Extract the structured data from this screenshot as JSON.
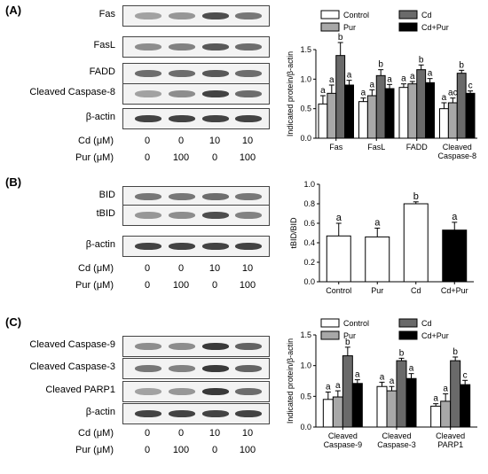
{
  "panels": [
    {
      "letter": "(A)",
      "blots": [
        {
          "label": "Fas",
          "intensity": [
            0.35,
            0.4,
            0.75,
            0.55
          ]
        },
        {
          "label": "FasL",
          "intensity": [
            0.45,
            0.5,
            0.7,
            0.6
          ]
        },
        {
          "label": "FADD",
          "intensity": [
            0.6,
            0.6,
            0.7,
            0.6
          ]
        },
        {
          "label": "Cleaved Caspase-8",
          "intensity": [
            0.35,
            0.45,
            0.8,
            0.6
          ]
        },
        {
          "label": "β-actin",
          "intensity": [
            0.8,
            0.8,
            0.8,
            0.8
          ]
        }
      ],
      "conditions": [
        {
          "label": "Cd (μM)",
          "values": [
            "0",
            "0",
            "10",
            "10"
          ]
        },
        {
          "label": "Pur (μM)",
          "values": [
            "0",
            "100",
            "0",
            "100"
          ]
        }
      ]
    },
    {
      "letter": "(B)",
      "blots": [
        {
          "label": "BID",
          "intensity": [
            0.55,
            0.55,
            0.6,
            0.55
          ]
        },
        {
          "label": "tBID",
          "intensity": [
            0.4,
            0.45,
            0.75,
            0.5
          ]
        },
        {
          "label": "β-actin",
          "intensity": [
            0.8,
            0.8,
            0.8,
            0.8
          ]
        }
      ],
      "conditions": [
        {
          "label": "Cd (μM)",
          "values": [
            "0",
            "0",
            "10",
            "10"
          ]
        },
        {
          "label": "Pur (μM)",
          "values": [
            "0",
            "100",
            "0",
            "100"
          ]
        }
      ]
    },
    {
      "letter": "(C)",
      "blots": [
        {
          "label": "Cleaved Caspase-9",
          "intensity": [
            0.45,
            0.45,
            0.85,
            0.65
          ]
        },
        {
          "label": "Cleaved Caspase-3",
          "intensity": [
            0.55,
            0.5,
            0.85,
            0.65
          ]
        },
        {
          "label": "Cleaved PARP1",
          "intensity": [
            0.35,
            0.4,
            0.85,
            0.6
          ]
        },
        {
          "label": "β-actin",
          "intensity": [
            0.8,
            0.8,
            0.8,
            0.8
          ]
        }
      ],
      "conditions": [
        {
          "label": "Cd (μM)",
          "values": [
            "0",
            "0",
            "10",
            "10"
          ]
        },
        {
          "label": "Pur (μM)",
          "values": [
            "0",
            "100",
            "0",
            "100"
          ]
        }
      ]
    }
  ],
  "colors": {
    "control": "#ffffff",
    "pur": "#a8a8a8",
    "cd": "#6a6a6a",
    "cdpur": "#000000"
  },
  "chart_data": [
    {
      "type": "bar",
      "ylabel": "Indicated protein/β-actin",
      "ylim": [
        0,
        1.5
      ],
      "yticks": [
        "0.0",
        "0.5",
        "1.0",
        "1.5"
      ],
      "categories": [
        "Fas",
        "FasL",
        "FADD",
        "Cleaved Caspase-8"
      ],
      "legend": "top",
      "series": [
        {
          "name": "Control",
          "color": "#ffffff",
          "values": [
            0.58,
            0.62,
            0.86,
            0.5
          ],
          "errors": [
            0.14,
            0.06,
            0.06,
            0.1
          ],
          "letters": [
            "a",
            "a",
            "a",
            "a"
          ]
        },
        {
          "name": "Pur",
          "color": "#a8a8a8",
          "values": [
            0.76,
            0.72,
            0.92,
            0.6
          ],
          "errors": [
            0.14,
            0.1,
            0.04,
            0.08
          ],
          "letters": [
            "a",
            "a",
            "a",
            "ac"
          ]
        },
        {
          "name": "Cd",
          "color": "#6a6a6a",
          "values": [
            1.4,
            1.06,
            1.16,
            1.1
          ],
          "errors": [
            0.22,
            0.1,
            0.08,
            0.05
          ],
          "letters": [
            "b",
            "b",
            "b",
            "b"
          ]
        },
        {
          "name": "Cd+Pur",
          "color": "#000000",
          "values": [
            0.9,
            0.84,
            0.94,
            0.76
          ],
          "errors": [
            0.08,
            0.07,
            0.07,
            0.04
          ],
          "letters": [
            "a",
            "a",
            "a",
            "c"
          ]
        }
      ]
    },
    {
      "type": "bar",
      "ylabel": "tBID/BID",
      "ylim": [
        0,
        1.0
      ],
      "yticks": [
        "0.0",
        "0.2",
        "0.4",
        "0.6",
        "0.8",
        "1.0"
      ],
      "categories": [
        "Control",
        "Pur",
        "Cd",
        "Cd+Pur"
      ],
      "series": [
        {
          "name": "",
          "colors": [
            "#ffffff",
            "#ffffff",
            "#ffffff",
            "#000000"
          ],
          "values": [
            0.47,
            0.46,
            0.8,
            0.53
          ],
          "errors": [
            0.13,
            0.09,
            0.02,
            0.08
          ],
          "letters": [
            "a",
            "a",
            "b",
            "a"
          ]
        }
      ]
    },
    {
      "type": "bar",
      "ylabel": "Indicated protein/β-actin",
      "ylim": [
        0,
        1.5
      ],
      "yticks": [
        "0.0",
        "0.5",
        "1.0",
        "1.5"
      ],
      "categories": [
        "Cleaved Caspase-9",
        "Cleaved Caspase-3",
        "Cleaved PARP1"
      ],
      "legend": "top",
      "series": [
        {
          "name": "Control",
          "color": "#ffffff",
          "values": [
            0.45,
            0.66,
            0.34
          ],
          "errors": [
            0.12,
            0.07,
            0.04
          ],
          "letters": [
            "a",
            "a",
            "a"
          ]
        },
        {
          "name": "Pur",
          "color": "#a8a8a8",
          "values": [
            0.49,
            0.59,
            0.42
          ],
          "errors": [
            0.1,
            0.07,
            0.12
          ],
          "letters": [
            "a",
            "a",
            "a"
          ]
        },
        {
          "name": "Cd",
          "color": "#6a6a6a",
          "values": [
            1.16,
            1.08,
            1.08
          ],
          "errors": [
            0.14,
            0.04,
            0.06
          ],
          "letters": [
            "b",
            "b",
            "b"
          ]
        },
        {
          "name": "Cd+Pur",
          "color": "#000000",
          "values": [
            0.71,
            0.79,
            0.69
          ],
          "errors": [
            0.06,
            0.08,
            0.07
          ],
          "letters": [
            "a",
            "a",
            "c"
          ]
        }
      ]
    }
  ]
}
